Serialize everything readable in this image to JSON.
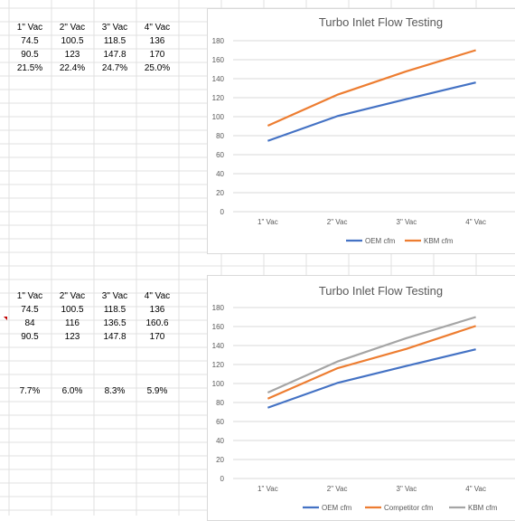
{
  "table1": {
    "headers": [
      "1\" Vac",
      "2\" Vac",
      "3\" Vac",
      "4\" Vac"
    ],
    "rows": [
      [
        "74.5",
        "100.5",
        "118.5",
        "136"
      ],
      [
        "90.5",
        "123",
        "147.8",
        "170"
      ],
      [
        "21.5%",
        "22.4%",
        "24.7%",
        "25.0%"
      ]
    ]
  },
  "table2": {
    "headers": [
      "1\" Vac",
      "2\" Vac",
      "3\" Vac",
      "4\" Vac"
    ],
    "rows": [
      [
        "74.5",
        "100.5",
        "118.5",
        "136"
      ],
      [
        "84",
        "116",
        "136.5",
        "160.6"
      ],
      [
        "90.5",
        "123",
        "147.8",
        "170"
      ]
    ],
    "percent_row": [
      "7.7%",
      "6.0%",
      "8.3%",
      "5.9%"
    ]
  },
  "chart_data": [
    {
      "type": "line",
      "title": "Turbo Inlet Flow Testing",
      "categories": [
        "1\" Vac",
        "2\" Vac",
        "3\" Vac",
        "4\" Vac"
      ],
      "ylim": [
        0,
        180
      ],
      "yticks": [
        "0",
        "20",
        "40",
        "60",
        "80",
        "100",
        "120",
        "140",
        "160",
        "180"
      ],
      "grid": true,
      "legend": "bottom",
      "series": [
        {
          "name": "OEM cfm",
          "values": [
            74.5,
            100.5,
            118.5,
            136
          ],
          "color": "#4472c4"
        },
        {
          "name": "KBM cfm",
          "values": [
            90.5,
            123,
            147.8,
            170
          ],
          "color": "#ed7d31"
        }
      ]
    },
    {
      "type": "line",
      "title": "Turbo Inlet Flow Testing",
      "categories": [
        "1\" Vac",
        "2\" Vac",
        "3\" Vac",
        "4\" Vac"
      ],
      "ylim": [
        0,
        180
      ],
      "yticks": [
        "0",
        "20",
        "40",
        "60",
        "80",
        "100",
        "120",
        "140",
        "160",
        "180"
      ],
      "grid": true,
      "legend": "bottom",
      "series": [
        {
          "name": "OEM cfm",
          "values": [
            74.5,
            100.5,
            118.5,
            136
          ],
          "color": "#4472c4"
        },
        {
          "name": "Competitor cfm",
          "values": [
            84,
            116,
            136.5,
            160.6
          ],
          "color": "#ed7d31"
        },
        {
          "name": "KBM cfm",
          "values": [
            90.5,
            123,
            147.8,
            170
          ],
          "color": "#a5a5a5"
        }
      ]
    }
  ]
}
